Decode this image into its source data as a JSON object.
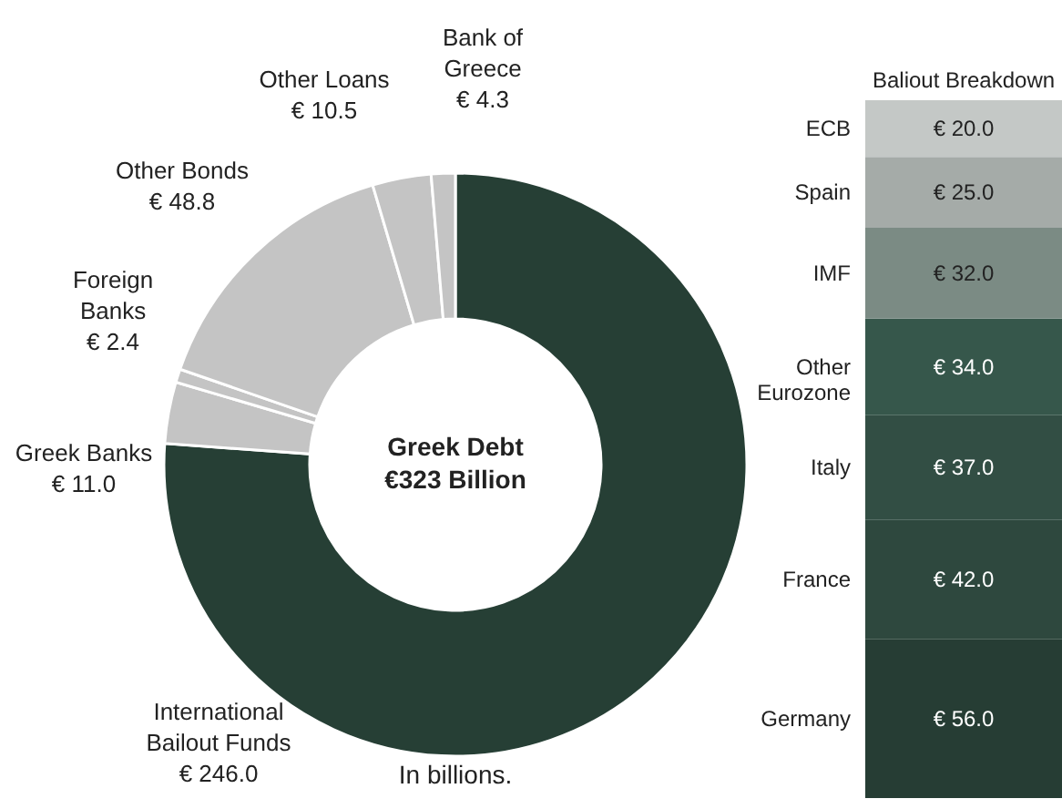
{
  "chart_data": [
    {
      "type": "donut",
      "categories": [
        "International Bailout Funds",
        "Greek Banks",
        "Foreign Banks",
        "Other Bonds",
        "Other Loans",
        "Bank of Greece"
      ],
      "values": [
        246.0,
        11.0,
        2.4,
        48.8,
        10.5,
        4.3
      ],
      "colors": [
        "#263f35",
        "#c4c4c4",
        "#c4c4c4",
        "#c4c4c4",
        "#c4c4c4",
        "#c4c4c4"
      ],
      "value_labels": [
        "€ 246.0",
        "€ 11.0",
        "€ 2.4",
        "€ 48.8",
        "€ 10.5",
        "€ 4.3"
      ],
      "annotations": [
        "Greek Debt €323 Billion",
        "In billions."
      ]
    },
    {
      "type": "bar",
      "title": "Baliout Breakdown",
      "stacked": true,
      "categories": [
        null
      ],
      "series": [
        {
          "name": "Germany",
          "color": "#263d34",
          "values": [
            56.0
          ],
          "value_labels": [
            "€ 56.0"
          ]
        },
        {
          "name": "France",
          "color": "#2e483e",
          "values": [
            42.0
          ],
          "value_labels": [
            "€ 42.0"
          ]
        },
        {
          "name": "Italy",
          "color": "#324e44",
          "values": [
            37.0
          ],
          "value_labels": [
            "€ 37.0"
          ]
        },
        {
          "name": "Other Eurozone",
          "color": "#36574b",
          "values": [
            34.0
          ],
          "value_labels": [
            "€ 34.0"
          ]
        },
        {
          "name": "IMF",
          "color": "#7b8b84",
          "values": [
            32.0
          ],
          "value_labels": [
            "€ 32.0"
          ]
        },
        {
          "name": "Spain",
          "color": "#a5aba8",
          "values": [
            25.0
          ],
          "value_labels": [
            "€ 25.0"
          ]
        },
        {
          "name": "ECB",
          "color": "#c4c8c6",
          "values": [
            20.0
          ],
          "value_labels": [
            "€ 20.0"
          ]
        }
      ]
    }
  ]
}
